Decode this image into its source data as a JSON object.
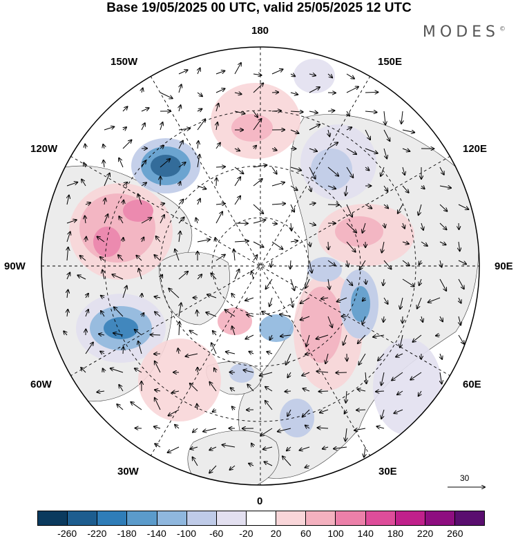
{
  "header": {
    "title": "Base 19/05/2025 00 UTC, valid 25/05/2025 12 UTC",
    "brand": "MODES",
    "brand_mark": "©"
  },
  "map": {
    "projection": "north polar stereographic",
    "longitude_labels": {
      "top": "180",
      "bottom": "0",
      "left": "90W",
      "right": "90E",
      "upper_left_1": "150W",
      "upper_left_2": "120W",
      "lower_left_1": "60W",
      "lower_left_2": "30W",
      "upper_right_1": "150E",
      "upper_right_2": "120E",
      "lower_right_1": "60E",
      "lower_right_2": "30E"
    },
    "reference_vector": "30",
    "colors": {
      "background": "#ffffff",
      "land": "#ececec",
      "grid": "#000000"
    }
  },
  "colorbar": {
    "colors": [
      "#0b3a5e",
      "#1d5d8f",
      "#2f7db8",
      "#5b9bcb",
      "#8fb7de",
      "#bfcbe8",
      "#e3e0f0",
      "#ffffff",
      "#f9d6d9",
      "#f4b1bf",
      "#ec80a9",
      "#de4d9a",
      "#c0218b",
      "#8e0e80",
      "#5a0e6f"
    ],
    "ticks": [
      "-260",
      "-220",
      "-180",
      "-140",
      "-100",
      "-60",
      "-20",
      "20",
      "60",
      "100",
      "140",
      "180",
      "220",
      "260"
    ]
  }
}
